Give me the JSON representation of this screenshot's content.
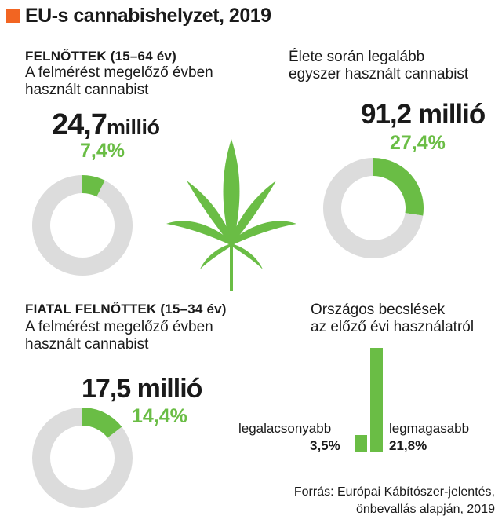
{
  "title": "EU-s cannabishelyzet, 2019",
  "colors": {
    "accent": "#f26522",
    "green": "#6abd45",
    "ring_grey": "#dcdcdc",
    "leaf": "#6abd45"
  },
  "adults": {
    "heading": "FELNŐTTEK (15–64 év)",
    "subtitle_line1": "A felmérést megelőző évben",
    "subtitle_line2": "használt cannabist",
    "big_number": "24,7",
    "big_unit": "millió",
    "percent_label": "7,4%"
  },
  "lifetime": {
    "subtitle_line1": "Élete során legalább",
    "subtitle_line2": "egyszer használt cannabist",
    "big_number": "91,2 millió",
    "percent_label": "27,4%"
  },
  "young_adults": {
    "heading": "FIATAL FELNŐTTEK (15–34 év)",
    "subtitle_line1": "A felmérést megelőző évben",
    "subtitle_line2": "használt cannabist",
    "big_number": "17,5 millió",
    "percent_label": "14,4%"
  },
  "national": {
    "title_line1": "Országos becslések",
    "title_line2": "az előző évi használatról",
    "low_label": "legalacsonyabb",
    "low_value": "3,5%",
    "high_label": "legmagasabb",
    "high_value": "21,8%"
  },
  "source": {
    "line1": "Forrás: Európai Kábítószer-jelentés,",
    "line2": "önbevallás alapján, 2019"
  },
  "chart_data": [
    {
      "type": "pie",
      "slices": [
        {
          "label": "7,4%",
          "value": 7.4
        },
        {
          "label": "",
          "value": 92.6
        }
      ]
    },
    {
      "type": "pie",
      "slices": [
        {
          "label": "27,4%",
          "value": 27.4
        },
        {
          "label": "",
          "value": 72.6
        }
      ]
    },
    {
      "type": "pie",
      "slices": [
        {
          "label": "14,4%",
          "value": 14.4
        },
        {
          "label": "",
          "value": 85.6
        }
      ]
    },
    {
      "type": "bar",
      "categories": [
        "legalacsonyabb",
        "legmagasabb"
      ],
      "values": [
        3.5,
        21.8
      ]
    }
  ]
}
